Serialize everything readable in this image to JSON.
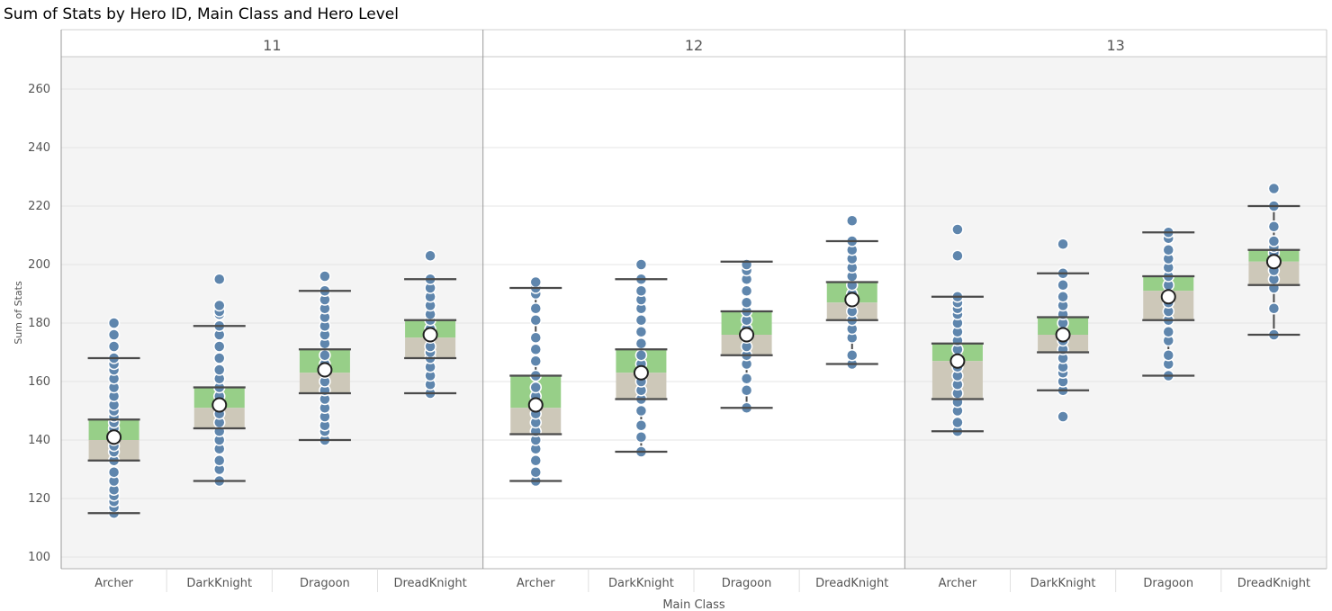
{
  "chart_data": {
    "type": "box",
    "title": "Sum of Stats by Hero ID, Main Class and Hero Level",
    "xlabel": "Main Class",
    "ylabel": "Sum of Stats",
    "ylim": [
      97,
      271
    ],
    "yticks": [
      100,
      120,
      140,
      160,
      180,
      200,
      220,
      240,
      260
    ],
    "grid": true,
    "panels": [
      {
        "level": "11",
        "groups": [
          {
            "class": "Archer",
            "whisker_low": 115,
            "q1": 133,
            "median": 140,
            "q3": 147,
            "whisker_high": 168,
            "mean": 141,
            "points": [
              115,
              117,
              119,
              121,
              123,
              126,
              129,
              133,
              136,
              138,
              140,
              142,
              144,
              146,
              148,
              150,
              152,
              155,
              158,
              161,
              164,
              166,
              168,
              172,
              176,
              180
            ]
          },
          {
            "class": "DarkKnight",
            "whisker_low": 126,
            "q1": 144,
            "median": 151,
            "q3": 158,
            "whisker_high": 179,
            "mean": 152,
            "points": [
              126,
              130,
              133,
              137,
              140,
              143,
              146,
              149,
              152,
              155,
              158,
              161,
              164,
              168,
              172,
              176,
              179,
              183,
              184,
              186,
              195
            ]
          },
          {
            "class": "Dragoon",
            "whisker_low": 140,
            "q1": 156,
            "median": 163,
            "q3": 171,
            "whisker_high": 191,
            "mean": 164,
            "points": [
              140,
              143,
              145,
              148,
              151,
              154,
              157,
              160,
              163,
              166,
              169,
              173,
              176,
              179,
              182,
              185,
              188,
              191,
              196
            ]
          },
          {
            "class": "DreadKnight",
            "whisker_low": 156,
            "q1": 168,
            "median": 175,
            "q3": 181,
            "whisker_high": 195,
            "mean": 176,
            "points": [
              156,
              159,
              162,
              165,
              168,
              170,
              172,
              175,
              178,
              181,
              183,
              186,
              189,
              192,
              195,
              203
            ]
          }
        ]
      },
      {
        "level": "12",
        "groups": [
          {
            "class": "Archer",
            "whisker_low": 126,
            "q1": 142,
            "median": 151,
            "q3": 162,
            "whisker_high": 192,
            "mean": 152,
            "points": [
              126,
              129,
              133,
              137,
              140,
              143,
              146,
              149,
              152,
              155,
              158,
              162,
              167,
              171,
              175,
              181,
              185,
              190,
              192,
              194
            ]
          },
          {
            "class": "DarkKnight",
            "whisker_low": 136,
            "q1": 154,
            "median": 163,
            "q3": 171,
            "whisker_high": 195,
            "mean": 163,
            "points": [
              136,
              141,
              145,
              150,
              154,
              157,
              160,
              163,
              166,
              169,
              173,
              177,
              181,
              185,
              188,
              191,
              195,
              200
            ]
          },
          {
            "class": "Dragoon",
            "whisker_low": 151,
            "q1": 169,
            "median": 176,
            "q3": 184,
            "whisker_high": 201,
            "mean": 176,
            "points": [
              151,
              157,
              161,
              166,
              169,
              172,
              175,
              178,
              181,
              184,
              187,
              191,
              195,
              198,
              200
            ]
          },
          {
            "class": "DreadKnight",
            "whisker_low": 166,
            "q1": 181,
            "median": 187,
            "q3": 194,
            "whisker_high": 208,
            "mean": 188,
            "points": [
              166,
              169,
              175,
              178,
              181,
              184,
              187,
              190,
              193,
              196,
              199,
              202,
              205,
              208,
              215
            ]
          }
        ]
      },
      {
        "level": "13",
        "groups": [
          {
            "class": "Archer",
            "whisker_low": 143,
            "q1": 154,
            "median": 167,
            "q3": 173,
            "whisker_high": 189,
            "mean": 167,
            "points": [
              143,
              146,
              150,
              153,
              156,
              159,
              162,
              165,
              168,
              171,
              174,
              177,
              180,
              183,
              185,
              187,
              189,
              203,
              212
            ]
          },
          {
            "class": "DarkKnight",
            "whisker_low": 157,
            "q1": 170,
            "median": 176,
            "q3": 182,
            "whisker_high": 197,
            "mean": 176,
            "points": [
              148,
              157,
              160,
              163,
              165,
              168,
              171,
              174,
              177,
              180,
              183,
              186,
              189,
              193,
              197,
              207
            ]
          },
          {
            "class": "Dragoon",
            "whisker_low": 162,
            "q1": 181,
            "median": 191,
            "q3": 196,
            "whisker_high": 211,
            "mean": 189,
            "points": [
              162,
              166,
              169,
              174,
              177,
              181,
              184,
              187,
              190,
              193,
              196,
              199,
              202,
              205,
              209,
              211
            ]
          },
          {
            "class": "DreadKnight",
            "whisker_low": 176,
            "q1": 193,
            "median": 201,
            "q3": 205,
            "whisker_high": 220,
            "mean": 201,
            "points": [
              176,
              185,
              192,
              195,
              198,
              201,
              204,
              206,
              208,
              213,
              220,
              226
            ]
          }
        ]
      }
    ],
    "colors": {
      "upper_box": "#97cf88",
      "lower_box": "#cdc8b9",
      "points": "#5f86ad",
      "whisker": "#4a4a4a",
      "mean_marker": "#ffffff",
      "panel_shaded": "#f4f4f4"
    }
  }
}
